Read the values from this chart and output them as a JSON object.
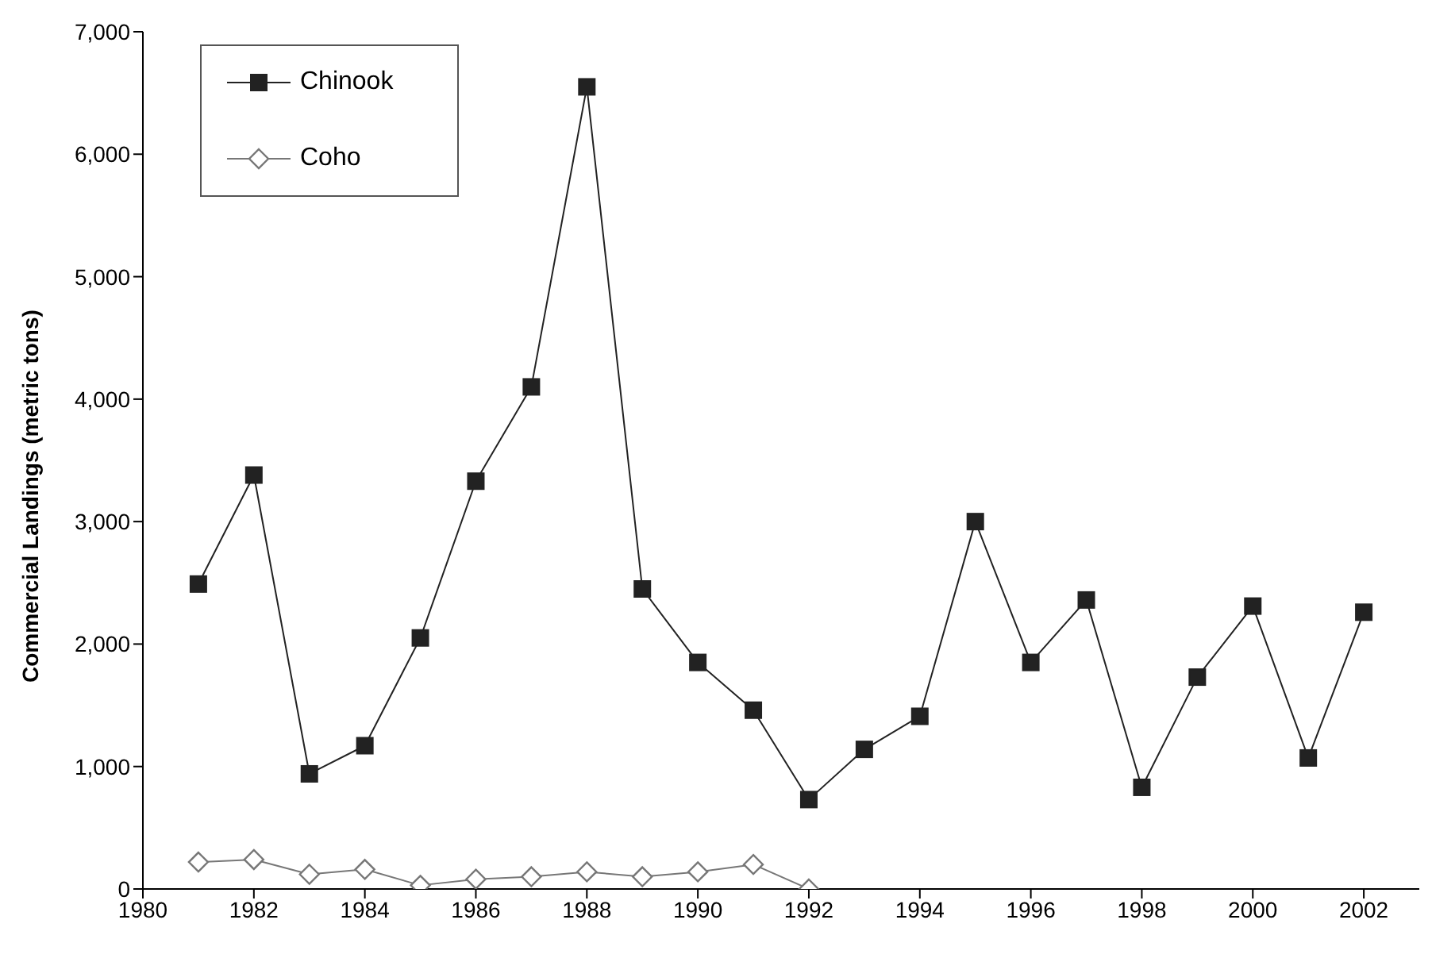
{
  "chart_data": {
    "type": "line",
    "ylabel": "Commercial Landings (metric tons)",
    "x": [
      1981,
      1982,
      1983,
      1984,
      1985,
      1986,
      1987,
      1988,
      1989,
      1990,
      1991,
      1992,
      1993,
      1994,
      1995,
      1996,
      1997,
      1998,
      1999,
      2000,
      2001,
      2002
    ],
    "series": [
      {
        "name": "Chinook",
        "color": "#222222",
        "marker": "square",
        "values": [
          2490,
          3380,
          940,
          1170,
          2050,
          3330,
          4100,
          6550,
          2450,
          1850,
          1460,
          730,
          1140,
          1410,
          3000,
          1850,
          2360,
          830,
          1730,
          2310,
          1070,
          2260
        ]
      },
      {
        "name": "Coho",
        "color": "#777777",
        "marker": "diamond",
        "values": [
          220,
          240,
          120,
          160,
          30,
          80,
          100,
          140,
          100,
          140,
          200,
          0,
          null,
          null,
          null,
          null,
          null,
          null,
          null,
          null,
          null,
          null
        ]
      }
    ],
    "xlim": [
      1980,
      2003
    ],
    "xticks": [
      1980,
      1982,
      1984,
      1986,
      1988,
      1990,
      1992,
      1994,
      1996,
      1998,
      2000,
      2002
    ],
    "ylim": [
      0,
      7000
    ],
    "yticks": [
      0,
      {
        "value": 1000,
        "label": "1,000"
      },
      {
        "value": 2000,
        "label": "2,000"
      },
      {
        "value": 3000,
        "label": "3,000"
      },
      {
        "value": 4000,
        "label": "4,000"
      },
      {
        "value": 5000,
        "label": "5,000"
      },
      {
        "value": 6000,
        "label": "6,000"
      },
      {
        "value": 7000,
        "label": "7,000"
      }
    ],
    "legend": "top left",
    "grid": false,
    "line_style": "solid"
  }
}
